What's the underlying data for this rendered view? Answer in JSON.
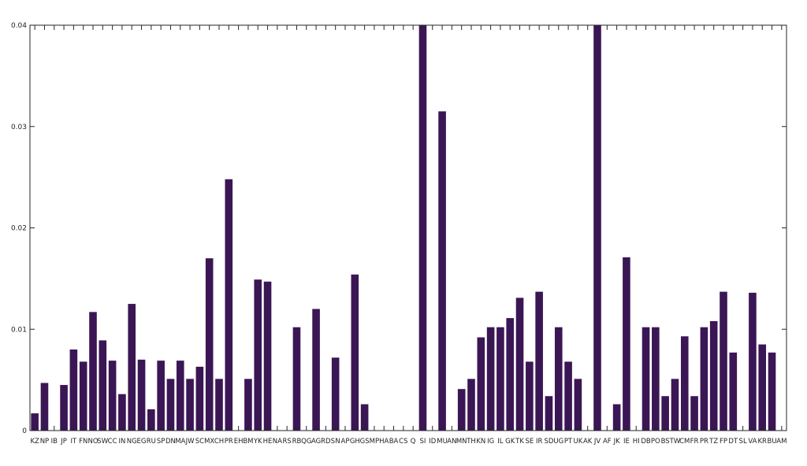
{
  "chart_data": {
    "type": "bar",
    "title": "",
    "xlabel": "",
    "ylabel": "",
    "ylim": [
      0,
      0.04
    ],
    "yticks": [
      0,
      0.01,
      0.02,
      0.03,
      0.04
    ],
    "ytick_labels": [
      "0",
      "0.01",
      "0.02",
      "0.03",
      "0.04"
    ],
    "grid": false,
    "bar_color": "#3b1655",
    "categories": [
      "KZ",
      "NP",
      "IB",
      "JP",
      "IT",
      "FN",
      "NO",
      "SW",
      "CC",
      "IN",
      "NG",
      "EG",
      "RU",
      "SP",
      "DN",
      "MA",
      "JW",
      "SC",
      "MX",
      "CH",
      "PR",
      "EH",
      "BM",
      "YK",
      "HE",
      "NA",
      "RS",
      "RB",
      "QG",
      "AG",
      "RD",
      "SN",
      "AP",
      "GH",
      "GS",
      "MP",
      "HA",
      "BA",
      "CS",
      "Q",
      "SI",
      "ID",
      "MU",
      "AN",
      "MN",
      "TH",
      "KN",
      "IG",
      "IL",
      "GK",
      "TK",
      "SE",
      "IR",
      "SD",
      "UG",
      "PT",
      "UK",
      "AK",
      "JV",
      "AF",
      "JK",
      "IE",
      "HI",
      "DB",
      "PO",
      "BS",
      "TW",
      "CM",
      "FR",
      "PR",
      "TZ",
      "FP",
      "DT",
      "SL",
      "VA",
      "KR",
      "BU",
      "AM"
    ],
    "values": [
      0.0017,
      0.0047,
      0,
      0.0045,
      0.008,
      0.0068,
      0.0117,
      0.0089,
      0.0069,
      0.0036,
      0.0125,
      0.007,
      0.0021,
      0.0069,
      0.0051,
      0.0069,
      0.0051,
      0.0063,
      0.017,
      0.0051,
      0.0248,
      0,
      0.0051,
      0.0149,
      0.0147,
      0,
      0,
      0.0102,
      0,
      0.012,
      0,
      0.0072,
      0,
      0.0154,
      0.0026,
      0,
      0,
      0,
      0,
      0,
      0.041,
      0,
      0.0315,
      0,
      0.0041,
      0.0051,
      0.0092,
      0.0102,
      0.0102,
      0.0111,
      0.0131,
      0.0068,
      0.0137,
      0.0034,
      0.0102,
      0.0068,
      0.0051,
      0,
      0.041,
      0,
      0.0026,
      0.0171,
      0,
      0.0102,
      0.0102,
      0.0034,
      0.0051,
      0.0093,
      0.0034,
      0.0102,
      0.0108,
      0.0137,
      0.0077,
      0,
      0.0136,
      0.0085,
      0.0077,
      0
    ]
  }
}
